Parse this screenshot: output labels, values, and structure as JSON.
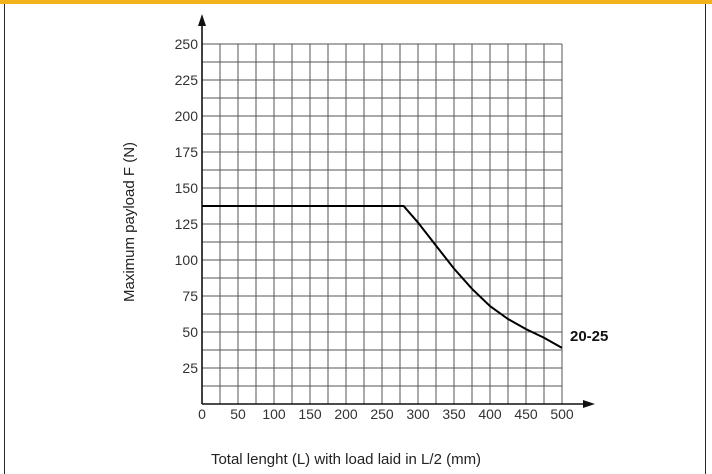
{
  "chart_data": {
    "type": "line",
    "title": "",
    "xlabel": "Total lenght (L) with load laid in L/2 (mm)",
    "ylabel": "Maximum payload F (N)",
    "xlim": [
      0,
      500
    ],
    "ylim": [
      0,
      250
    ],
    "x_ticks": [
      "0",
      "50",
      "100",
      "150",
      "200",
      "250",
      "300",
      "350",
      "400",
      "450",
      "500"
    ],
    "y_ticks": [
      "25",
      "50",
      "75",
      "100",
      "125",
      "150",
      "175",
      "200",
      "225",
      "250"
    ],
    "grid": true,
    "grid_step": {
      "x": 25,
      "y": 12.5
    },
    "series": [
      {
        "name": "20-25",
        "color": "#000000",
        "points": [
          [
            0,
            137.5
          ],
          [
            280,
            137.5
          ],
          [
            300,
            126
          ],
          [
            325,
            110
          ],
          [
            350,
            94
          ],
          [
            375,
            80
          ],
          [
            400,
            68
          ],
          [
            425,
            59
          ],
          [
            450,
            52
          ],
          [
            475,
            46
          ],
          [
            500,
            39
          ]
        ]
      }
    ]
  },
  "colors": {
    "accent_bar": "#f2b21b",
    "grid": "#555555",
    "line": "#000000"
  }
}
